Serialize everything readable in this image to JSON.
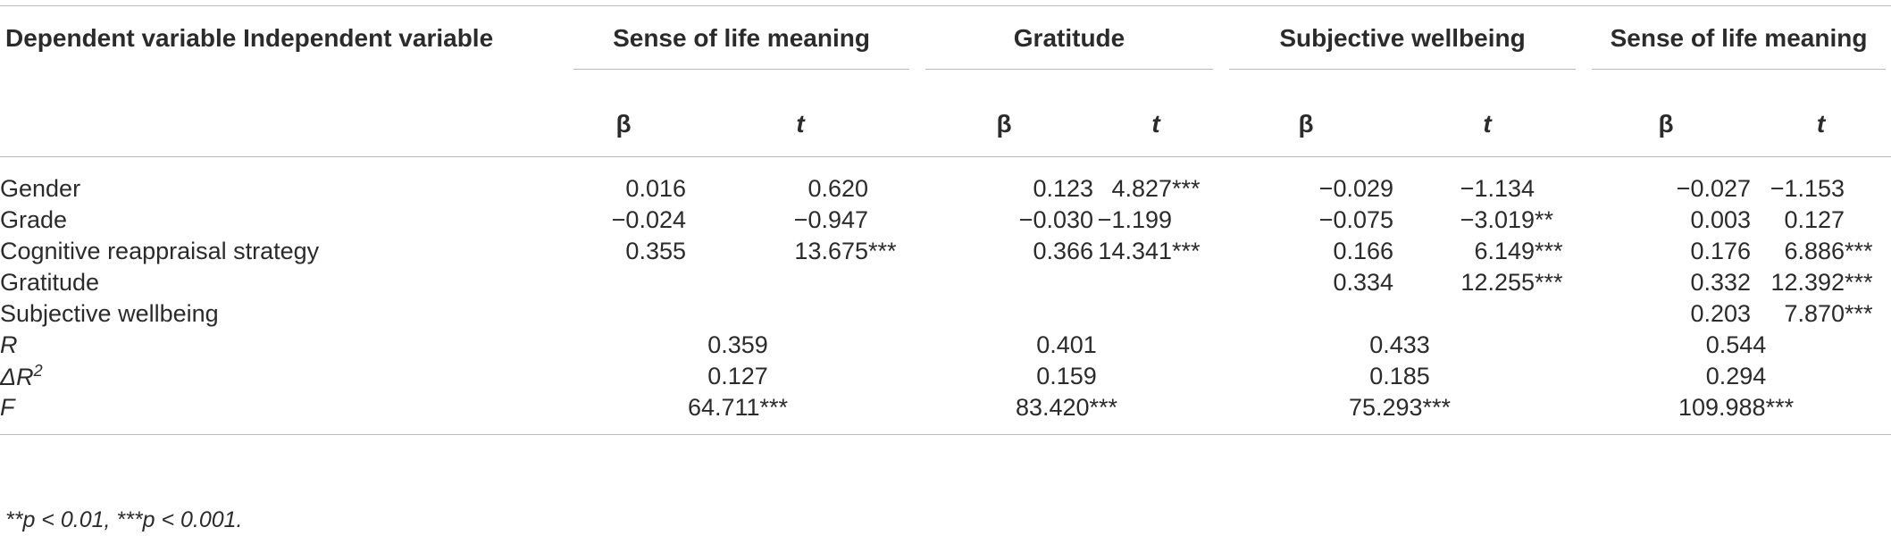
{
  "table": {
    "header": {
      "first_col": "Dependent variable Independent variable",
      "groups": [
        "Sense of life meaning",
        "Gratitude",
        "Subjective wellbeing",
        "Sense of life meaning"
      ],
      "beta": "β",
      "t": "t"
    },
    "rows": [
      {
        "label": "Gender",
        "cells": [
          [
            "0.016",
            ""
          ],
          [
            "0.620",
            ""
          ],
          [
            "0.123",
            ""
          ],
          [
            "4.827",
            "***"
          ],
          [
            "−0.029",
            ""
          ],
          [
            "−1.134",
            ""
          ],
          [
            "−0.027",
            ""
          ],
          [
            "−1.153",
            ""
          ]
        ]
      },
      {
        "label": "Grade",
        "cells": [
          [
            "−0.024",
            ""
          ],
          [
            "−0.947",
            ""
          ],
          [
            "−0.030",
            ""
          ],
          [
            "−1.199",
            ""
          ],
          [
            "−0.075",
            ""
          ],
          [
            "−3.019",
            "**"
          ],
          [
            "0.003",
            ""
          ],
          [
            "0.127",
            ""
          ]
        ]
      },
      {
        "label": "Cognitive reappraisal strategy",
        "cells": [
          [
            "0.355",
            ""
          ],
          [
            "13.675",
            "***"
          ],
          [
            "0.366",
            ""
          ],
          [
            "14.341",
            "***"
          ],
          [
            "0.166",
            ""
          ],
          [
            "6.149",
            "***"
          ],
          [
            "0.176",
            ""
          ],
          [
            "6.886",
            "***"
          ]
        ]
      },
      {
        "label": "Gratitude",
        "cells": [
          [
            "",
            ""
          ],
          [
            "",
            ""
          ],
          [
            "",
            ""
          ],
          [
            "",
            ""
          ],
          [
            "0.334",
            ""
          ],
          [
            "12.255",
            "***"
          ],
          [
            "0.332",
            ""
          ],
          [
            "12.392",
            "***"
          ]
        ]
      },
      {
        "label": "Subjective wellbeing",
        "cells": [
          [
            "",
            ""
          ],
          [
            "",
            ""
          ],
          [
            "",
            ""
          ],
          [
            "",
            ""
          ],
          [
            "",
            ""
          ],
          [
            "",
            ""
          ],
          [
            "0.203",
            ""
          ],
          [
            "7.870",
            "***"
          ]
        ]
      }
    ],
    "stats": [
      {
        "label": "R",
        "values": [
          [
            "0.359",
            ""
          ],
          [
            "0.401",
            ""
          ],
          [
            "0.433",
            ""
          ],
          [
            "0.544",
            ""
          ]
        ]
      },
      {
        "label": "ΔR",
        "label_sup": "2",
        "values": [
          [
            "0.127",
            ""
          ],
          [
            "0.159",
            ""
          ],
          [
            "0.185",
            ""
          ],
          [
            "0.294",
            ""
          ]
        ]
      },
      {
        "label": "F",
        "values": [
          [
            "64.711",
            "***"
          ],
          [
            "83.420",
            "***"
          ],
          [
            "75.293",
            "***"
          ],
          [
            "109.988",
            "***"
          ]
        ]
      }
    ],
    "footnote": "**p < 0.01, ***p < 0.001."
  }
}
